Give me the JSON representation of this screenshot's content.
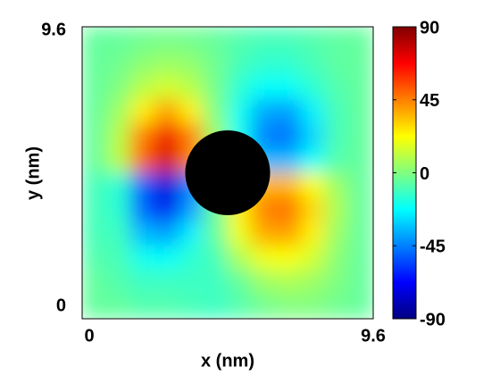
{
  "chart_data": {
    "type": "heatmap",
    "xlabel": "x (nm)",
    "ylabel": "y (nm)",
    "x": [
      0.4,
      1.2,
      2.0,
      2.8,
      3.6,
      4.4,
      5.2,
      6.0,
      6.8,
      7.6,
      8.4,
      9.2
    ],
    "y": [
      9.2,
      8.4,
      7.6,
      6.8,
      6.0,
      5.2,
      4.4,
      3.6,
      2.8,
      2.0,
      1.2,
      0.4
    ],
    "z": [
      [
        -5,
        -5,
        -3,
        -2,
        -3,
        -5,
        -8,
        -10,
        -10,
        -8,
        -6,
        -5
      ],
      [
        -5,
        -3,
        2,
        5,
        3,
        -3,
        -10,
        -14,
        -14,
        -10,
        -6,
        -5
      ],
      [
        -5,
        0,
        10,
        15,
        10,
        -2,
        -15,
        -22,
        -22,
        -15,
        -8,
        -5
      ],
      [
        -5,
        5,
        25,
        40,
        25,
        0,
        -20,
        -38,
        -40,
        -25,
        -10,
        -5
      ],
      [
        -5,
        10,
        45,
        70,
        45,
        5,
        -20,
        -45,
        -48,
        -30,
        -10,
        -5
      ],
      [
        -5,
        10,
        50,
        75,
        45,
        10,
        -15,
        -35,
        -35,
        -22,
        -8,
        -5
      ],
      [
        -10,
        -15,
        -50,
        -75,
        -45,
        -10,
        15,
        35,
        35,
        22,
        5,
        -5
      ],
      [
        -10,
        -15,
        -50,
        -70,
        -40,
        -5,
        25,
        45,
        48,
        30,
        8,
        -5
      ],
      [
        -10,
        -12,
        -35,
        -40,
        -25,
        -5,
        20,
        38,
        40,
        25,
        5,
        -5
      ],
      [
        -8,
        -10,
        -20,
        -22,
        -15,
        -10,
        8,
        20,
        22,
        15,
        2,
        -5
      ],
      [
        -5,
        -8,
        -12,
        -12,
        -12,
        -12,
        -5,
        5,
        8,
        5,
        0,
        -5
      ],
      [
        -5,
        -5,
        -8,
        -8,
        -10,
        -12,
        -8,
        -3,
        0,
        0,
        -3,
        -5
      ]
    ],
    "xlim": [
      0,
      9.6
    ],
    "ylim": [
      0,
      9.6
    ],
    "xticks": [
      0,
      9.6
    ],
    "yticks": [
      0,
      9.6
    ],
    "colormap": "jet",
    "zlim": [
      -90,
      90
    ],
    "colorbar_ticks": [
      -90,
      -45,
      0,
      45,
      90
    ],
    "particle": {
      "x": 4.8,
      "y": 4.8,
      "r": 1.4,
      "color": "#000000"
    }
  }
}
